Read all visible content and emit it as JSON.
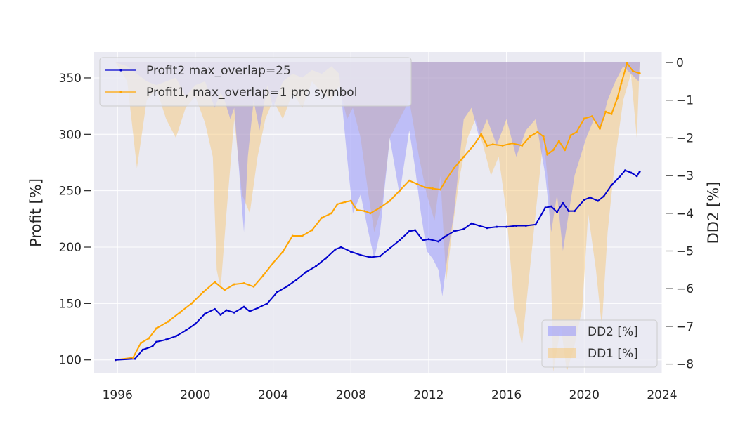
{
  "chart_data": {
    "type": "line",
    "title": "",
    "xlabel": "",
    "ylabel": "Profit [%]",
    "y2label": "DD2 [%]",
    "xlim": [
      1994.8,
      2024.0
    ],
    "ylim": [
      88,
      373
    ],
    "y2lim": [
      -8.25,
      0.28
    ],
    "x_ticks": [
      1996,
      2000,
      2004,
      2008,
      2012,
      2016,
      2020,
      2024
    ],
    "y_ticks": [
      100,
      150,
      200,
      250,
      300,
      350
    ],
    "y2_ticks": [
      0,
      -1,
      -2,
      -3,
      -4,
      -5,
      -6,
      -7,
      -8
    ],
    "y2_tick_labels": [
      "0",
      "−1",
      "−2",
      "−3",
      "−4",
      "−5",
      "−6",
      "−7",
      "−8"
    ],
    "grid": true,
    "legend_upper": {
      "placement": "top-left",
      "entries": [
        "Profit2 max_overlap=25",
        "Profit1, max_overlap=1 pro symbol"
      ]
    },
    "legend_lower": {
      "placement": "bottom-right",
      "entries": [
        "DD2 [%]",
        "DD1 [%]"
      ]
    },
    "colors": {
      "profit2": "#0000cd",
      "profit1": "#ffa500",
      "dd2_fill": "#8080ff",
      "dd1_fill": "#f5c87a",
      "plot_bg": "#eaeaf2",
      "grid": "#ffffff"
    },
    "series": [
      {
        "name": "Profit2 max_overlap=25",
        "axis": "left",
        "x": [
          1995.9,
          1996.9,
          1997.3,
          1997.8,
          1998.0,
          1998.5,
          1999.0,
          1999.5,
          2000.0,
          2000.5,
          2001.0,
          2001.3,
          2001.6,
          2002.0,
          2002.5,
          2002.8,
          2003.2,
          2003.7,
          2004.2,
          2004.7,
          2005.2,
          2005.7,
          2006.2,
          2006.7,
          2007.2,
          2007.5,
          2008.0,
          2008.5,
          2009.0,
          2009.5,
          2010.0,
          2010.5,
          2011.0,
          2011.3,
          2011.7,
          2012.0,
          2012.5,
          2012.8,
          2013.3,
          2013.8,
          2014.2,
          2014.6,
          2015.0,
          2015.5,
          2016.0,
          2016.5,
          2017.0,
          2017.5,
          2018.0,
          2018.3,
          2018.6,
          2018.9,
          2019.2,
          2019.5,
          2020.0,
          2020.3,
          2020.7,
          2021.0,
          2021.4,
          2021.8,
          2022.1,
          2022.4,
          2022.7,
          2022.85
        ],
        "values": [
          100,
          101,
          109,
          112,
          116,
          118,
          121,
          126,
          132,
          141,
          145,
          140,
          144,
          142,
          147,
          143,
          146,
          150,
          160,
          165,
          171,
          178,
          183,
          190,
          198,
          200,
          196,
          193,
          191,
          192,
          199,
          206,
          214,
          215,
          206,
          207,
          205,
          209,
          214,
          216,
          221,
          219,
          217,
          218,
          218,
          219,
          219,
          220,
          235,
          236,
          231,
          239,
          232,
          232,
          242,
          244,
          241,
          245,
          255,
          262,
          268,
          266,
          263,
          267
        ]
      },
      {
        "name": "Profit1, max_overlap=1 pro symbol",
        "axis": "left",
        "x": [
          1995.9,
          1996.8,
          1997.2,
          1997.6,
          1998.0,
          1998.6,
          1999.2,
          1999.8,
          2000.4,
          2001.0,
          2001.5,
          2002.0,
          2002.5,
          2003.0,
          2003.5,
          2004.0,
          2004.5,
          2005.0,
          2005.5,
          2006.0,
          2006.5,
          2007.0,
          2007.3,
          2007.7,
          2008.0,
          2008.3,
          2008.7,
          2009.0,
          2009.5,
          2010.0,
          2010.5,
          2011.0,
          2011.4,
          2011.8,
          2012.2,
          2012.6,
          2012.9,
          2013.3,
          2013.8,
          2014.3,
          2014.7,
          2015.0,
          2015.3,
          2015.8,
          2016.3,
          2016.8,
          2017.2,
          2017.6,
          2017.9,
          2018.1,
          2018.4,
          2018.7,
          2019.0,
          2019.3,
          2019.6,
          2020.0,
          2020.4,
          2020.8,
          2021.1,
          2021.4,
          2021.7,
          2021.9,
          2022.2,
          2022.5,
          2022.85
        ],
        "values": [
          100,
          102,
          115,
          119,
          128,
          134,
          142,
          150,
          160,
          169,
          162,
          167,
          168,
          165,
          175,
          186,
          196,
          210,
          210,
          215,
          226,
          230,
          238,
          240,
          241,
          233,
          232,
          230,
          235,
          241,
          250,
          259,
          256,
          253,
          252,
          251,
          260,
          270,
          280,
          290,
          300,
          290,
          291,
          290,
          292,
          290,
          298,
          302,
          298,
          282,
          286,
          294,
          286,
          299,
          302,
          314,
          316,
          305,
          320,
          318,
          332,
          345,
          363,
          356,
          354
        ]
      },
      {
        "name": "DD2 [%]",
        "axis": "right",
        "kind": "area",
        "x": [
          1995.9,
          1996.5,
          1997.0,
          1997.5,
          1998.0,
          1998.5,
          1999.0,
          1999.5,
          2000.0,
          2000.5,
          2001.0,
          2001.3,
          2001.5,
          2001.8,
          2002.0,
          2002.3,
          2002.5,
          2002.7,
          2003.0,
          2003.3,
          2003.7,
          2004.0,
          2004.5,
          2005.0,
          2005.5,
          2006.0,
          2006.5,
          2007.0,
          2007.4,
          2007.8,
          2008.1,
          2008.5,
          2008.9,
          2009.2,
          2009.5,
          2009.8,
          2010.0,
          2010.5,
          2011.0,
          2011.3,
          2011.6,
          2011.9,
          2012.2,
          2012.5,
          2012.7,
          2013.0,
          2013.3,
          2013.8,
          2014.2,
          2014.6,
          2015.0,
          2015.5,
          2016.0,
          2016.5,
          2017.0,
          2017.5,
          2018.0,
          2018.3,
          2018.6,
          2018.9,
          2019.2,
          2019.5,
          2019.8,
          2020.1,
          2020.5,
          2020.8,
          2021.2,
          2021.6,
          2022.0,
          2022.4,
          2022.8,
          2022.85
        ],
        "values": [
          0,
          -0.1,
          -0.3,
          -0.5,
          -0.6,
          -0.5,
          -0.4,
          -0.9,
          -0.6,
          -0.5,
          -1.2,
          -0.8,
          -1.0,
          -1.5,
          -1.2,
          -3.2,
          -4.5,
          -2.5,
          -1.0,
          -1.8,
          -0.6,
          -1.2,
          -0.5,
          -0.3,
          -0.4,
          -0.2,
          -0.3,
          -0.1,
          -0.3,
          -2.5,
          -4.0,
          -3.5,
          -4.5,
          -5.2,
          -4.5,
          -3.0,
          -2.0,
          -3.5,
          -1.8,
          -2.8,
          -4.0,
          -5.0,
          -5.2,
          -5.5,
          -6.2,
          -5.0,
          -4.0,
          -1.5,
          -1.2,
          -2.0,
          -1.5,
          -2.2,
          -1.5,
          -2.5,
          -1.8,
          -1.5,
          -3.0,
          -4.5,
          -3.5,
          -5.0,
          -4.0,
          -3.0,
          -2.5,
          -2.0,
          -1.5,
          -1.8,
          -1.0,
          -0.5,
          -0.1,
          -0.3,
          -0.5,
          0
        ]
      },
      {
        "name": "DD1 [%]",
        "axis": "right",
        "kind": "area",
        "x": [
          1995.9,
          1996.5,
          1997.0,
          1997.5,
          1998.0,
          1998.5,
          1999.0,
          1999.5,
          2000.0,
          2000.5,
          2000.9,
          2001.1,
          2001.3,
          2001.6,
          2002.0,
          2002.4,
          2002.8,
          2003.2,
          2003.6,
          2004.0,
          2004.5,
          2005.0,
          2005.5,
          2006.0,
          2006.5,
          2007.0,
          2007.4,
          2007.8,
          2008.1,
          2008.5,
          2008.9,
          2009.2,
          2009.6,
          2010.0,
          2010.5,
          2011.0,
          2011.5,
          2011.9,
          2012.3,
          2012.6,
          2012.9,
          2013.2,
          2013.6,
          2014.0,
          2014.4,
          2014.8,
          2015.2,
          2015.6,
          2016.0,
          2016.4,
          2016.8,
          2017.2,
          2017.6,
          2017.9,
          2018.2,
          2018.4,
          2018.8,
          2019.1,
          2019.5,
          2019.9,
          2020.2,
          2020.6,
          2020.9,
          2021.2,
          2021.6,
          2022.0,
          2022.4,
          2022.7,
          2022.85
        ],
        "values": [
          0,
          -0.5,
          -2.8,
          -1.0,
          -0.7,
          -1.5,
          -2.0,
          -1.2,
          -0.9,
          -1.6,
          -2.5,
          -5.5,
          -6.0,
          -4.0,
          -1.5,
          -3.5,
          -4.0,
          -2.5,
          -1.5,
          -1.0,
          -1.5,
          -0.8,
          -1.2,
          -0.5,
          -0.8,
          -1.0,
          -0.6,
          -1.5,
          -1.2,
          -2.0,
          -3.5,
          -4.5,
          -3.8,
          -2.0,
          -1.5,
          -1.0,
          -2.5,
          -3.5,
          -4.2,
          -3.0,
          -5.8,
          -4.5,
          -3.0,
          -2.0,
          -1.5,
          -2.2,
          -3.0,
          -2.5,
          -4.0,
          -6.5,
          -7.5,
          -5.5,
          -3.5,
          -2.0,
          -3.5,
          -8.2,
          -7.0,
          -8.2,
          -7.5,
          -6.5,
          -4.0,
          -5.5,
          -7.0,
          -4.5,
          -2.5,
          -1.0,
          -0.3,
          -2.0,
          0
        ]
      }
    ]
  }
}
